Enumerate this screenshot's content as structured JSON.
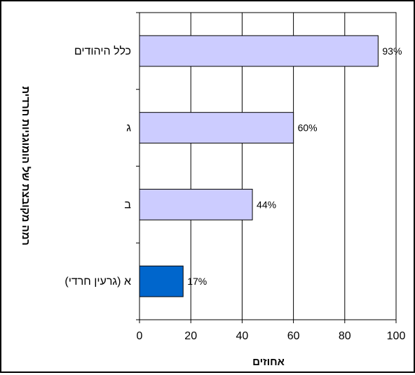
{
  "chart_data": {
    "type": "bar",
    "orientation": "horizontal",
    "title": "",
    "xlabel": "אחוזים",
    "ylabel": "רמה מקובצת של הומוגניות חרדית",
    "xlim": [
      0,
      100
    ],
    "x_ticks": [
      0,
      20,
      40,
      60,
      80,
      100
    ],
    "grid": true,
    "legend": "none",
    "categories": [
      "כלל היהודים",
      "ג",
      "ב",
      "א (גרעין חרדי)"
    ],
    "values": [
      93,
      60,
      44,
      17
    ],
    "data_labels": [
      "93%",
      "60%",
      "44%",
      "17%"
    ],
    "colors": {
      "bar": "#ccccff",
      "highlight": "#0066cc",
      "grid": "#000000",
      "border": "#000000"
    },
    "highlight_index": 3
  }
}
